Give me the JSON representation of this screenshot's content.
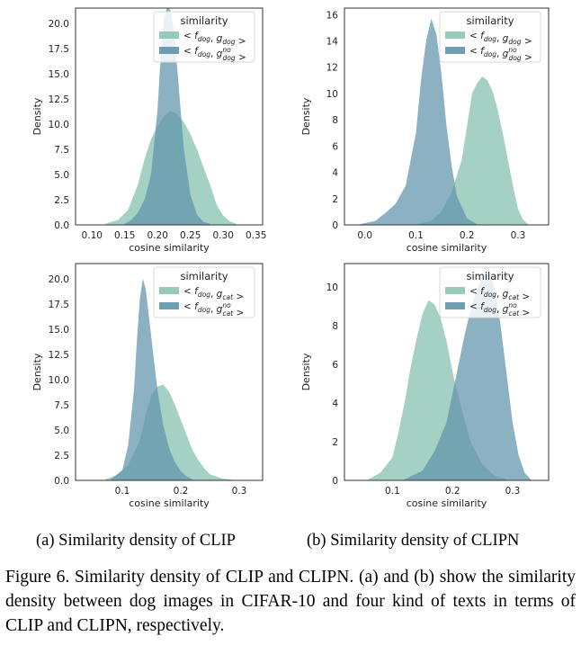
{
  "chart_data": [
    {
      "type": "area",
      "panel": "top-left",
      "xlabel": "cosine similarity",
      "ylabel": "Density",
      "xlim": [
        0.075,
        0.36
      ],
      "ylim": [
        0,
        21.5
      ],
      "xticks": [
        0.1,
        0.15,
        0.2,
        0.25,
        0.3,
        0.35
      ],
      "xtick_labels": [
        "0.10",
        "0.15",
        "0.20",
        "0.25",
        "0.30",
        "0.35"
      ],
      "yticks": [
        0,
        2.5,
        5,
        7.5,
        10,
        12.5,
        15,
        17.5,
        20
      ],
      "ytick_labels": [
        "0.0",
        "2.5",
        "5.0",
        "7.5",
        "10.0",
        "12.5",
        "15.0",
        "17.5",
        "20.0"
      ],
      "grid": false,
      "legend": {
        "title": "similarity",
        "placement": "top-right"
      },
      "series": [
        {
          "name": "< f_dog, g_dog >",
          "color": "#8cc4b3",
          "x": [
            0.12,
            0.14,
            0.155,
            0.17,
            0.18,
            0.19,
            0.2,
            0.21,
            0.22,
            0.23,
            0.24,
            0.25,
            0.26,
            0.27,
            0.28,
            0.29,
            0.3,
            0.31,
            0.32
          ],
          "y": [
            0.1,
            0.5,
            1.5,
            4.0,
            6.5,
            8.5,
            9.8,
            10.8,
            11.3,
            11.0,
            10.2,
            9.0,
            7.5,
            5.7,
            4.0,
            2.0,
            0.9,
            0.35,
            0.1
          ]
        },
        {
          "name": "< f_dog, g_dog^no >",
          "color": "#5f93aa",
          "x": [
            0.15,
            0.16,
            0.17,
            0.18,
            0.19,
            0.2,
            0.205,
            0.21,
            0.215,
            0.22,
            0.225,
            0.23,
            0.24,
            0.25,
            0.26,
            0.27,
            0.28
          ],
          "y": [
            0.1,
            0.5,
            1.2,
            2.5,
            5.0,
            11.5,
            17.0,
            20.5,
            21.7,
            21.2,
            19.0,
            15.5,
            7.5,
            3.0,
            1.0,
            0.3,
            0.1
          ]
        }
      ]
    },
    {
      "type": "area",
      "panel": "top-right",
      "xlabel": "cosine similarity",
      "ylabel": "Density",
      "xlim": [
        -0.04,
        0.36
      ],
      "ylim": [
        0,
        16.5
      ],
      "xticks": [
        0.0,
        0.1,
        0.2,
        0.3
      ],
      "xtick_labels": [
        "0.0",
        "0.1",
        "0.2",
        "0.3"
      ],
      "yticks": [
        0,
        2,
        4,
        6,
        8,
        10,
        12,
        14,
        16
      ],
      "ytick_labels": [
        "0",
        "2",
        "4",
        "6",
        "8",
        "10",
        "12",
        "14",
        "16"
      ],
      "grid": false,
      "legend": {
        "title": "similarity",
        "placement": "top-right"
      },
      "series": [
        {
          "name": "< f_dog, g_dog >",
          "color": "#8cc4b3",
          "x": [
            0.1,
            0.13,
            0.15,
            0.17,
            0.19,
            0.2,
            0.21,
            0.22,
            0.23,
            0.24,
            0.25,
            0.26,
            0.27,
            0.28,
            0.29,
            0.3,
            0.31,
            0.32
          ],
          "y": [
            0.05,
            0.3,
            1.0,
            2.5,
            5.0,
            7.5,
            10.0,
            10.8,
            11.3,
            11.0,
            10.2,
            8.8,
            7.0,
            5.0,
            3.0,
            1.2,
            0.4,
            0.05
          ]
        },
        {
          "name": "< f_dog, g_dog^no >",
          "color": "#5f93aa",
          "x": [
            -0.01,
            0.02,
            0.04,
            0.06,
            0.08,
            0.1,
            0.11,
            0.12,
            0.13,
            0.14,
            0.15,
            0.16,
            0.17,
            0.18,
            0.2,
            0.22
          ],
          "y": [
            0.05,
            0.3,
            0.9,
            1.6,
            3.0,
            7.0,
            11.0,
            14.0,
            15.7,
            14.5,
            11.5,
            7.5,
            4.5,
            2.2,
            0.5,
            0.05
          ]
        }
      ]
    },
    {
      "type": "area",
      "panel": "bottom-left",
      "xlabel": "cosine similarity",
      "ylabel": "Density",
      "xlim": [
        0.02,
        0.34
      ],
      "ylim": [
        0,
        21.5
      ],
      "xticks": [
        0.1,
        0.2,
        0.3
      ],
      "xtick_labels": [
        "0.1",
        "0.2",
        "0.3"
      ],
      "yticks": [
        0,
        2.5,
        5,
        7.5,
        10,
        12.5,
        15,
        17.5,
        20
      ],
      "ytick_labels": [
        "0.0",
        "2.5",
        "5.0",
        "7.5",
        "10.0",
        "12.5",
        "15.0",
        "17.5",
        "20.0"
      ],
      "grid": false,
      "legend": {
        "title": "similarity",
        "placement": "top-right"
      },
      "series": [
        {
          "name": "< f_dog, g_cat >",
          "color": "#8cc4b3",
          "x": [
            0.07,
            0.09,
            0.11,
            0.13,
            0.14,
            0.15,
            0.16,
            0.17,
            0.18,
            0.19,
            0.2,
            0.21,
            0.22,
            0.23,
            0.24,
            0.25,
            0.27,
            0.29
          ],
          "y": [
            0.1,
            0.5,
            1.5,
            4.0,
            6.5,
            8.5,
            9.3,
            9.5,
            8.8,
            7.5,
            6.0,
            4.5,
            3.0,
            2.0,
            1.2,
            0.6,
            0.2,
            0.05
          ]
        },
        {
          "name": "< f_dog, g_cat^no >",
          "color": "#5f93aa",
          "x": [
            0.08,
            0.1,
            0.11,
            0.12,
            0.125,
            0.13,
            0.135,
            0.14,
            0.15,
            0.16,
            0.17,
            0.18,
            0.19,
            0.2,
            0.21,
            0.22
          ],
          "y": [
            0.1,
            1.0,
            3.5,
            9.0,
            14.0,
            18.0,
            20.0,
            19.0,
            14.0,
            9.0,
            5.5,
            3.2,
            1.8,
            0.9,
            0.4,
            0.1
          ]
        }
      ]
    },
    {
      "type": "area",
      "panel": "bottom-right",
      "xlabel": "cosine similarity",
      "ylabel": "Density",
      "xlim": [
        0.02,
        0.36
      ],
      "ylim": [
        0,
        11.2
      ],
      "xticks": [
        0.1,
        0.2,
        0.3
      ],
      "xtick_labels": [
        "0.1",
        "0.2",
        "0.3"
      ],
      "yticks": [
        0,
        2,
        4,
        6,
        8,
        10
      ],
      "ytick_labels": [
        "0",
        "2",
        "4",
        "6",
        "8",
        "10"
      ],
      "grid": false,
      "legend": {
        "title": "similarity",
        "placement": "top-right"
      },
      "series": [
        {
          "name": "< f_dog, g_cat >",
          "color": "#8cc4b3",
          "x": [
            0.06,
            0.08,
            0.1,
            0.11,
            0.12,
            0.13,
            0.14,
            0.15,
            0.16,
            0.17,
            0.18,
            0.19,
            0.2,
            0.21,
            0.22,
            0.23,
            0.25,
            0.27,
            0.29
          ],
          "y": [
            0.05,
            0.4,
            1.2,
            2.5,
            4.0,
            5.8,
            7.3,
            8.6,
            9.3,
            9.1,
            8.4,
            7.2,
            5.6,
            4.3,
            3.1,
            2.0,
            0.8,
            0.25,
            0.05
          ]
        },
        {
          "name": "< f_dog, g_cat^no >",
          "color": "#5f93aa",
          "x": [
            0.12,
            0.15,
            0.17,
            0.19,
            0.2,
            0.21,
            0.22,
            0.23,
            0.24,
            0.25,
            0.26,
            0.27,
            0.28,
            0.29,
            0.3,
            0.31,
            0.32,
            0.33
          ],
          "y": [
            0.05,
            0.5,
            1.5,
            3.0,
            4.5,
            6.0,
            7.5,
            8.8,
            9.8,
            10.6,
            10.8,
            10.0,
            8.0,
            5.5,
            3.0,
            1.3,
            0.4,
            0.05
          ]
        }
      ]
    }
  ],
  "captions": {
    "sub_a": "(a)  Similarity density of CLIP",
    "sub_b": "(b)  Similarity density of CLIPN",
    "figure": "Figure 6. Similarity density of CLIP and CLIPN. (a) and (b) show the similarity density between dog images in CIFAR-10 and four kind of texts in terms of CLIP and CLIPN, respectively."
  }
}
